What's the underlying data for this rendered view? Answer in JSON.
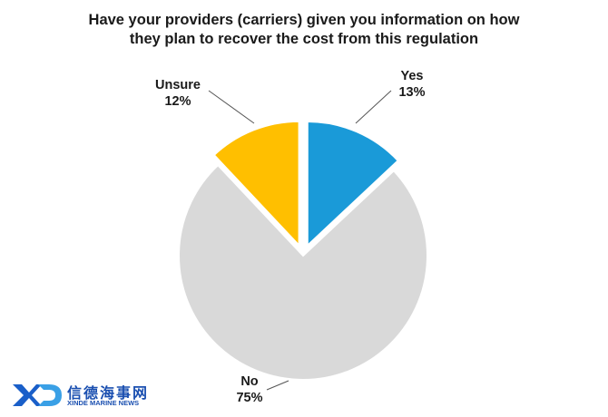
{
  "chart_data": {
    "type": "pie",
    "title_line1": "Have your providers (carriers) given you information on how",
    "title_line2": "they plan to recover the cost from this regulation",
    "slices": [
      {
        "label": "Yes",
        "value": 13,
        "display": "13%",
        "color": "#1a9ad8",
        "exploded": true
      },
      {
        "label": "No",
        "value": 75,
        "display": "75%",
        "color": "#d9d9d9",
        "exploded": false
      },
      {
        "label": "Unsure",
        "value": 12,
        "display": "12%",
        "color": "#ffbf00",
        "exploded": true
      }
    ]
  },
  "watermark": {
    "chinese": "信德海事网",
    "english": "XINDE MARINE NEWS"
  }
}
